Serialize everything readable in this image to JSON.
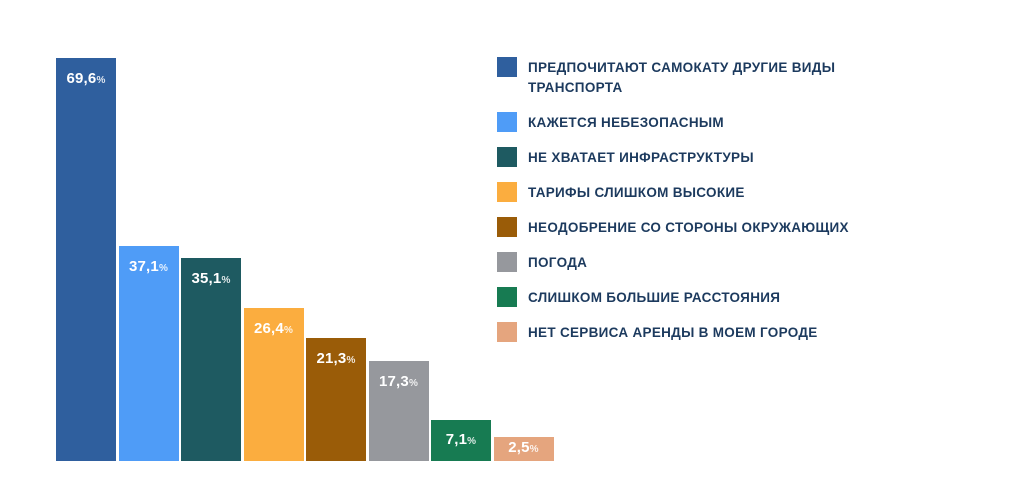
{
  "chart_data": {
    "type": "bar",
    "value_suffix": "%",
    "orientation": "vertical",
    "axis_lines": false,
    "grid": false,
    "legend_position": "right",
    "value_range_implied": [
      0,
      69.6
    ],
    "categories": [
      "ПРЕДПОЧИТАЮТ САМОКАТУ ДРУГИЕ ВИДЫ ТРАНСПОРТА",
      "КАЖЕТСЯ НЕБЕЗОПАСНЫМ",
      "НЕ ХВАТАЕТ ИНФРАСТРУКТУРЫ",
      "ТАРИФЫ СЛИШКОМ ВЫСОКИЕ",
      "НЕОДОБРЕНИЕ СО СТОРОНЫ ОКРУЖАЮЩИХ",
      "ПОГОДА",
      "СЛИШКОМ БОЛЬШИЕ РАССТОЯНИЯ",
      "НЕТ СЕРВИСА АРЕНДЫ В МОЕМ ГОРОДЕ"
    ],
    "values": [
      69.6,
      37.1,
      35.1,
      26.4,
      21.3,
      17.3,
      7.1,
      2.5
    ],
    "display_values": [
      "69,6",
      "37,1",
      "35,1",
      "26,4",
      "21,3",
      "17,3",
      "7,1",
      "2,5"
    ],
    "colors": [
      "#2F5F9E",
      "#4F9CF7",
      "#1E5A61",
      "#FBAD3F",
      "#9A5C08",
      "#96989D",
      "#177B52",
      "#E5A57E"
    ],
    "label_color": "#ffffff",
    "legend_text_color": "#1C3A5E"
  }
}
